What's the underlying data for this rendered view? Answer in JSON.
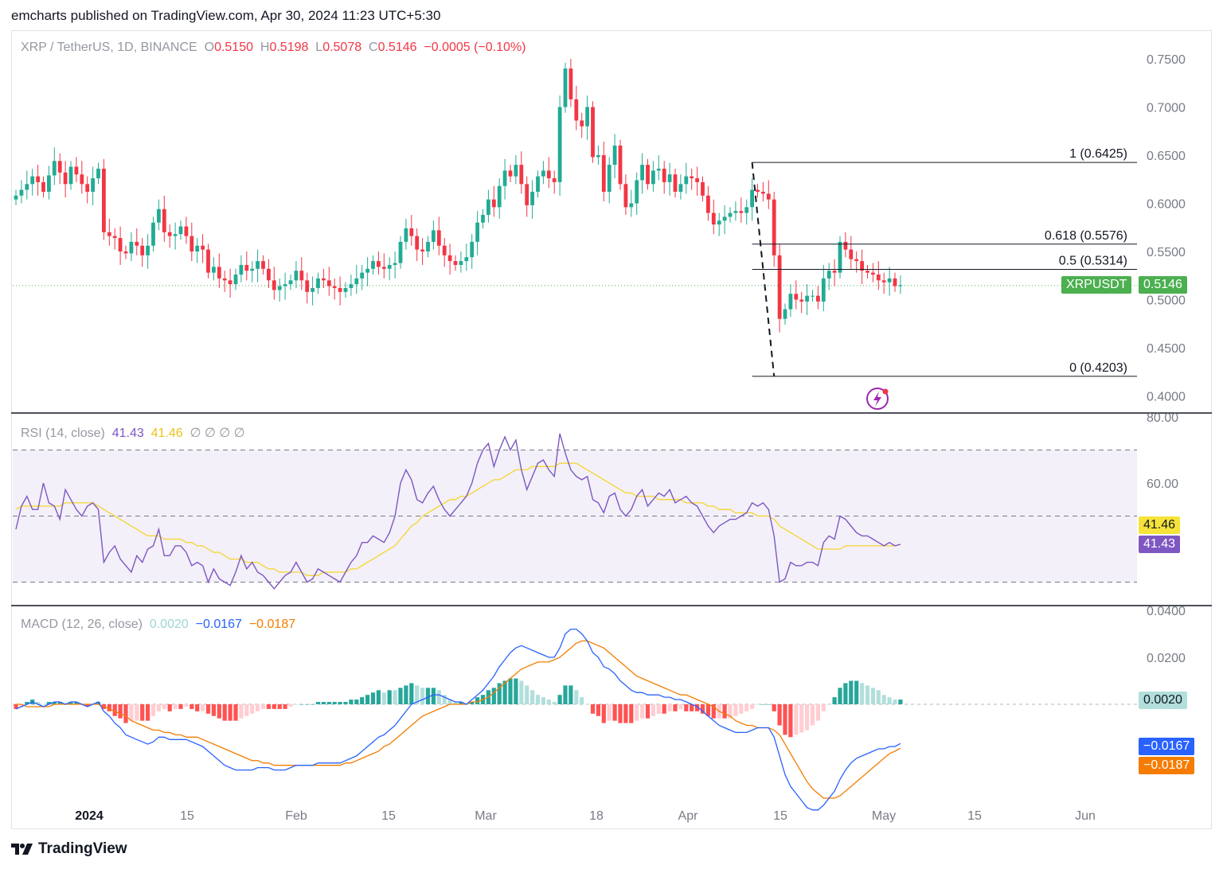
{
  "header": {
    "published": "emcharts published on TradingView.com, Apr 30, 2024 11:23 UTC+5:30"
  },
  "footer": {
    "brand": "TradingView"
  },
  "symbol": {
    "title": "XRP / TetherUS, 1D, BINANCE",
    "o_label": "O",
    "o_value": "0.5150",
    "h_label": "H",
    "h_value": "0.5198",
    "l_label": "L",
    "l_value": "0.5078",
    "c_label": "C",
    "c_value": "0.5146",
    "change": "−0.0005 (−0.10%)",
    "ticker_tag": "XRPUSDT",
    "price_tag": "0.5146"
  },
  "rsi": {
    "title": "RSI (14, close)",
    "value": "41.43",
    "ma_value": "41.46",
    "extra": "∅ ∅ ∅ ∅",
    "tag_rsi": "41.43",
    "tag_ma": "41.46"
  },
  "macd": {
    "title": "MACD (12, 26, close)",
    "hist": "0.0020",
    "macd": "−0.0167",
    "signal": "−0.0187",
    "tag_hist": "0.0020",
    "tag_macd": "−0.0167",
    "tag_signal": "−0.0187"
  },
  "colors": {
    "up": "#22ab94",
    "down": "#f23645",
    "rsi": "#7e57c2",
    "rsi_ma": "#f5d52a",
    "macd": "#2962ff",
    "signal": "#f57c00"
  },
  "chart_data": [
    {
      "type": "candlestick",
      "title": "XRP / TetherUS, 1D, BINANCE",
      "y_ticks": [
        "0.7500",
        "0.7000",
        "0.6500",
        "0.6000",
        "0.5500",
        "0.5000",
        "0.4500",
        "0.4000"
      ],
      "ylim": [
        0.39,
        0.76
      ],
      "x_ticks": [
        "2024",
        "15",
        "Feb",
        "15",
        "Mar",
        "18",
        "Apr",
        "15",
        "May",
        "15",
        "Jun"
      ],
      "fib_levels": [
        {
          "label": "1 (0.6425)",
          "value": 0.6425
        },
        {
          "label": "0.618 (0.5576)",
          "value": 0.5576
        },
        {
          "label": "0.5 (0.5314)",
          "value": 0.5314
        },
        {
          "label": "0 (0.4203)",
          "value": 0.4203
        }
      ],
      "last_price": 0.5146,
      "close": [
        0.608,
        0.614,
        0.62,
        0.628,
        0.622,
        0.612,
        0.629,
        0.644,
        0.632,
        0.62,
        0.638,
        0.63,
        0.62,
        0.612,
        0.626,
        0.636,
        0.57,
        0.566,
        0.564,
        0.55,
        0.548,
        0.56,
        0.556,
        0.546,
        0.556,
        0.58,
        0.594,
        0.57,
        0.566,
        0.568,
        0.576,
        0.566,
        0.55,
        0.556,
        0.552,
        0.528,
        0.534,
        0.522,
        0.52,
        0.516,
        0.526,
        0.536,
        0.53,
        0.532,
        0.54,
        0.532,
        0.52,
        0.51,
        0.514,
        0.516,
        0.52,
        0.53,
        0.52,
        0.508,
        0.512,
        0.522,
        0.52,
        0.514,
        0.512,
        0.508,
        0.512,
        0.516,
        0.522,
        0.528,
        0.532,
        0.54,
        0.534,
        0.532,
        0.536,
        0.538,
        0.56,
        0.574,
        0.566,
        0.552,
        0.55,
        0.56,
        0.572,
        0.556,
        0.546,
        0.54,
        0.536,
        0.54,
        0.544,
        0.56,
        0.58,
        0.588,
        0.604,
        0.596,
        0.618,
        0.634,
        0.628,
        0.64,
        0.62,
        0.598,
        0.612,
        0.628,
        0.634,
        0.626,
        0.622,
        0.7,
        0.74,
        0.708,
        0.686,
        0.68,
        0.7,
        0.648,
        0.65,
        0.612,
        0.64,
        0.66,
        0.62,
        0.596,
        0.6,
        0.624,
        0.64,
        0.62,
        0.634,
        0.636,
        0.622,
        0.63,
        0.612,
        0.62,
        0.628,
        0.626,
        0.622,
        0.608,
        0.59,
        0.578,
        0.582,
        0.586,
        0.59,
        0.592,
        0.59,
        0.596,
        0.614,
        0.612,
        0.61,
        0.604,
        0.546,
        0.48,
        0.49,
        0.506,
        0.5,
        0.498,
        0.504,
        0.504,
        0.498,
        0.522,
        0.53,
        0.528,
        0.56,
        0.552,
        0.542,
        0.54,
        0.53,
        0.528,
        0.526,
        0.52,
        0.518,
        0.522,
        0.514,
        0.515
      ]
    },
    {
      "type": "line",
      "title": "RSI (14, close)",
      "y_ticks": [
        "80.00",
        "60.00"
      ],
      "bands": [
        70,
        50,
        30
      ],
      "ylim": [
        25,
        80
      ],
      "series": [
        {
          "name": "RSI",
          "values": [
            46,
            53,
            56,
            52,
            52,
            60,
            54,
            53,
            49,
            58,
            55,
            52,
            50,
            53,
            54,
            52,
            36,
            39,
            41,
            37,
            35,
            33,
            38,
            36,
            40,
            41,
            46,
            38,
            38,
            41,
            41,
            39,
            35,
            36,
            35,
            30,
            34,
            31,
            30,
            29,
            33,
            38,
            34,
            36,
            33,
            32,
            30,
            28,
            30,
            32,
            33,
            36,
            33,
            30,
            31,
            34,
            33,
            32,
            31,
            30,
            33,
            36,
            38,
            42,
            42,
            44,
            43,
            42,
            45,
            50,
            60,
            64,
            61,
            55,
            54,
            57,
            59,
            55,
            52,
            50,
            52,
            54,
            56,
            60,
            66,
            70,
            72,
            65,
            70,
            74,
            70,
            73,
            64,
            58,
            62,
            66,
            67,
            64,
            62,
            75,
            69,
            64,
            62,
            61,
            62,
            55,
            54,
            51,
            56,
            57,
            52,
            50,
            52,
            56,
            58,
            53,
            55,
            57,
            56,
            58,
            54,
            55,
            56,
            54,
            53,
            50,
            47,
            45,
            47,
            48,
            49,
            49,
            50,
            51,
            54,
            53,
            54,
            52,
            44,
            30,
            31,
            36,
            35,
            35,
            36,
            36,
            35,
            42,
            44,
            43,
            50,
            49,
            47,
            45,
            44,
            44,
            43,
            42,
            41,
            42,
            41,
            41.43
          ]
        },
        {
          "name": "MA",
          "values": [
            52,
            53,
            53,
            53,
            53,
            53,
            53,
            53,
            53,
            54,
            54,
            54,
            54,
            54,
            54,
            53,
            52,
            51,
            50,
            49,
            48,
            47,
            46,
            45,
            44,
            44,
            44,
            43,
            43,
            43,
            43,
            42,
            42,
            41,
            41,
            40,
            39,
            39,
            38,
            37,
            37,
            37,
            36,
            36,
            36,
            35,
            34,
            34,
            33,
            33,
            33,
            33,
            33,
            32,
            32,
            32,
            33,
            33,
            33,
            33,
            33,
            34,
            34,
            35,
            36,
            37,
            38,
            39,
            40,
            41,
            43,
            45,
            47,
            48,
            50,
            51,
            52,
            53,
            54,
            55,
            55,
            56,
            56,
            57,
            58,
            59,
            60,
            61,
            61,
            62,
            63,
            64,
            64,
            64,
            65,
            65,
            65,
            65,
            65,
            66,
            66,
            66,
            66,
            65,
            64,
            63,
            62,
            61,
            60,
            59,
            58,
            57,
            57,
            56,
            56,
            56,
            56,
            55,
            55,
            55,
            55,
            55,
            54,
            54,
            54,
            54,
            53,
            53,
            52,
            52,
            52,
            51,
            51,
            51,
            51,
            50,
            50,
            50,
            49,
            47,
            46,
            45,
            44,
            43,
            42,
            41,
            40,
            40,
            40,
            40,
            40,
            41,
            41,
            41,
            41,
            41,
            41,
            41,
            41,
            41,
            41,
            41.46
          ]
        }
      ]
    },
    {
      "type": "line",
      "title": "MACD (12, 26, close)",
      "y_ticks": [
        "0.0400",
        "0.0200"
      ],
      "ylim": [
        -0.052,
        0.042
      ],
      "series": [
        {
          "name": "MACD",
          "values": [
            -0.002,
            -0.001,
            0,
            0.001,
            0,
            -0.001,
            0,
            0.001,
            0.001,
            0,
            0.001,
            0.001,
            0,
            -0.001,
            0,
            0.001,
            -0.003,
            -0.005,
            -0.008,
            -0.01,
            -0.013,
            -0.014,
            -0.015,
            -0.016,
            -0.017,
            -0.016,
            -0.014,
            -0.014,
            -0.015,
            -0.015,
            -0.015,
            -0.015,
            -0.016,
            -0.017,
            -0.018,
            -0.02,
            -0.022,
            -0.024,
            -0.026,
            -0.027,
            -0.028,
            -0.028,
            -0.028,
            -0.028,
            -0.027,
            -0.027,
            -0.027,
            -0.028,
            -0.028,
            -0.028,
            -0.027,
            -0.026,
            -0.026,
            -0.026,
            -0.026,
            -0.025,
            -0.025,
            -0.025,
            -0.025,
            -0.025,
            -0.024,
            -0.023,
            -0.022,
            -0.02,
            -0.018,
            -0.016,
            -0.014,
            -0.013,
            -0.011,
            -0.009,
            -0.006,
            -0.003,
            0,
            0.001,
            0.002,
            0.003,
            0.004,
            0.004,
            0.003,
            0.002,
            0.001,
            0.001,
            0,
            0.002,
            0.004,
            0.006,
            0.009,
            0.012,
            0.016,
            0.019,
            0.022,
            0.024,
            0.025,
            0.024,
            0.023,
            0.022,
            0.021,
            0.02,
            0.02,
            0.024,
            0.03,
            0.032,
            0.032,
            0.03,
            0.027,
            0.022,
            0.02,
            0.016,
            0.015,
            0.013,
            0.01,
            0.008,
            0.006,
            0.005,
            0.005,
            0.004,
            0.004,
            0.004,
            0.003,
            0.003,
            0.002,
            0.002,
            0.001,
            0,
            -0.001,
            -0.003,
            -0.005,
            -0.007,
            -0.009,
            -0.01,
            -0.011,
            -0.012,
            -0.012,
            -0.012,
            -0.011,
            -0.01,
            -0.01,
            -0.01,
            -0.014,
            -0.022,
            -0.03,
            -0.035,
            -0.038,
            -0.041,
            -0.044,
            -0.045,
            -0.045,
            -0.043,
            -0.04,
            -0.037,
            -0.032,
            -0.028,
            -0.025,
            -0.023,
            -0.022,
            -0.021,
            -0.02,
            -0.019,
            -0.019,
            -0.018,
            -0.018,
            -0.0167
          ]
        },
        {
          "name": "Signal",
          "values": [
            0,
            0,
            -0.001,
            -0.001,
            -0.001,
            -0.001,
            -0.001,
            0,
            0,
            0,
            0,
            0,
            0,
            0,
            0,
            0,
            -0.001,
            -0.002,
            -0.003,
            -0.004,
            -0.005,
            -0.007,
            -0.008,
            -0.009,
            -0.01,
            -0.011,
            -0.011,
            -0.012,
            -0.012,
            -0.013,
            -0.013,
            -0.014,
            -0.014,
            -0.014,
            -0.015,
            -0.016,
            -0.017,
            -0.018,
            -0.019,
            -0.02,
            -0.021,
            -0.022,
            -0.023,
            -0.024,
            -0.024,
            -0.025,
            -0.025,
            -0.026,
            -0.026,
            -0.026,
            -0.026,
            -0.026,
            -0.026,
            -0.026,
            -0.026,
            -0.026,
            -0.026,
            -0.026,
            -0.026,
            -0.026,
            -0.025,
            -0.025,
            -0.024,
            -0.023,
            -0.022,
            -0.021,
            -0.02,
            -0.018,
            -0.017,
            -0.015,
            -0.013,
            -0.011,
            -0.009,
            -0.007,
            -0.005,
            -0.004,
            -0.003,
            -0.002,
            -0.001,
            0,
            0,
            0,
            0,
            0.001,
            0.001,
            0.002,
            0.003,
            0.005,
            0.007,
            0.009,
            0.011,
            0.013,
            0.015,
            0.016,
            0.017,
            0.018,
            0.018,
            0.018,
            0.019,
            0.02,
            0.022,
            0.024,
            0.026,
            0.027,
            0.027,
            0.026,
            0.025,
            0.024,
            0.022,
            0.02,
            0.018,
            0.016,
            0.014,
            0.012,
            0.011,
            0.01,
            0.009,
            0.008,
            0.007,
            0.006,
            0.005,
            0.004,
            0.004,
            0.003,
            0.002,
            0.001,
            0,
            -0.001,
            -0.003,
            -0.004,
            -0.005,
            -0.007,
            -0.008,
            -0.009,
            -0.009,
            -0.01,
            -0.01,
            -0.01,
            -0.011,
            -0.013,
            -0.017,
            -0.021,
            -0.025,
            -0.029,
            -0.033,
            -0.036,
            -0.038,
            -0.04,
            -0.04,
            -0.04,
            -0.039,
            -0.037,
            -0.035,
            -0.033,
            -0.031,
            -0.029,
            -0.027,
            -0.025,
            -0.023,
            -0.021,
            -0.02,
            -0.0187
          ]
        }
      ]
    }
  ],
  "time_axis": [
    "2024",
    "15",
    "Feb",
    "15",
    "Mar",
    "18",
    "Apr",
    "15",
    "May",
    "15",
    "Jun"
  ]
}
